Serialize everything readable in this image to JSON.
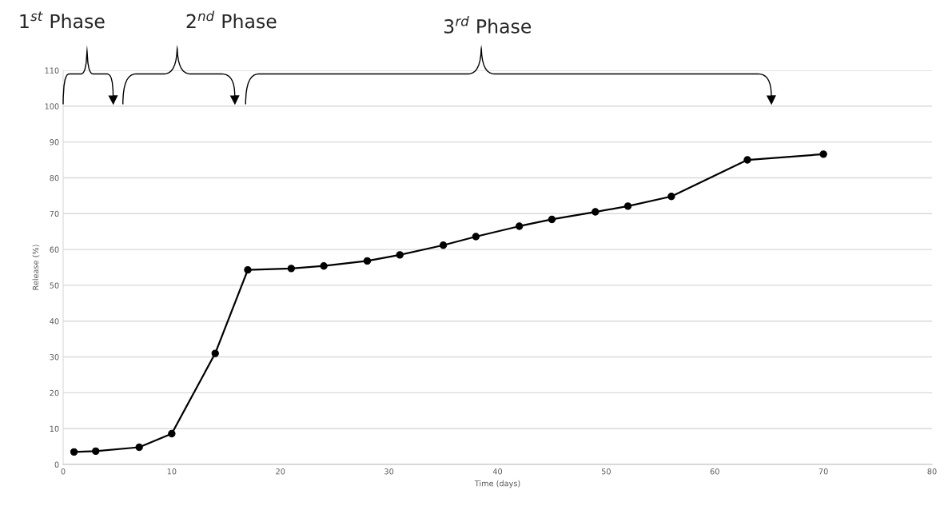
{
  "chart_data": {
    "type": "line",
    "xlabel": "Time (days)",
    "ylabel": "Release (%)",
    "annotations": [
      "1$^{st}$ Phase",
      "2$^{nd}$ Phase",
      "3$^{rd}$ Phase"
    ],
    "x": [
      1,
      3,
      7,
      10,
      14,
      17,
      21,
      24,
      28,
      31,
      35,
      38,
      42,
      45,
      49,
      52,
      56,
      63,
      70
    ],
    "series": [
      {
        "color": "#000000",
        "values": [
          3.5,
          3.7,
          4.8,
          8.6,
          31,
          54.3,
          54.7,
          55.4,
          56.8,
          58.5,
          61.2,
          63.6,
          66.5,
          68.4,
          70.5,
          72.1,
          74.8,
          85,
          86.6
        ]
      }
    ],
    "xlim": [
      0,
      80
    ],
    "xticks": [
      0,
      10,
      20,
      30,
      40,
      50,
      60,
      70,
      80
    ],
    "ylim": [
      0,
      110
    ],
    "yticks": [
      0,
      10,
      20,
      30,
      40,
      50,
      60,
      70,
      80,
      90,
      100,
      110
    ],
    "grid": "y",
    "marker": "circle",
    "line_style": "solid"
  }
}
